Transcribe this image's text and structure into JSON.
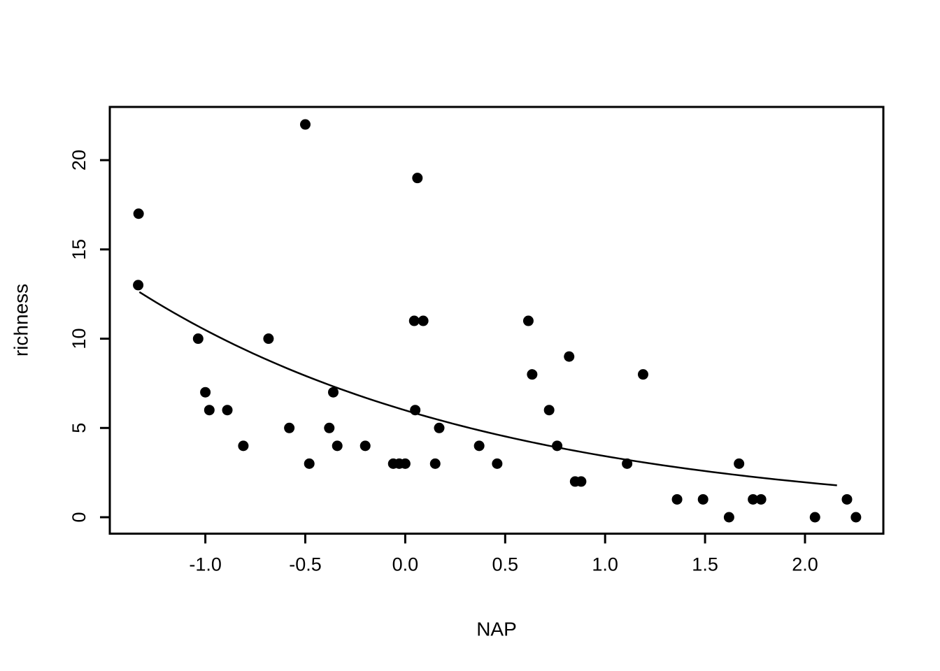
{
  "chart_data": {
    "type": "scatter",
    "title": "",
    "xlabel": "NAP",
    "ylabel": "richness",
    "xlim": [
      -1.478,
      2.392
    ],
    "ylim": [
      -0.92,
      22.98
    ],
    "x_ticks": [
      -1.0,
      -0.5,
      0.0,
      0.5,
      1.0,
      1.5,
      2.0
    ],
    "x_tick_labels": [
      "-1.0",
      "-0.5",
      "0.0",
      "0.5",
      "1.0",
      "1.5",
      "2.0"
    ],
    "y_ticks": [
      0,
      5,
      10,
      15,
      20
    ],
    "y_tick_labels": [
      "0",
      "5",
      "10",
      "15",
      "20"
    ],
    "grid": false,
    "legend": "none",
    "point_color": "#000000",
    "line_color": "#000000",
    "background_color": "#ffffff",
    "points": [
      [
        -1.334,
        17
      ],
      [
        -1.336,
        13
      ],
      [
        -1.036,
        10
      ],
      [
        -1.0,
        7
      ],
      [
        -0.98,
        6
      ],
      [
        -0.89,
        6
      ],
      [
        -0.81,
        4
      ],
      [
        -0.684,
        10
      ],
      [
        -0.58,
        5
      ],
      [
        -0.5,
        22
      ],
      [
        -0.48,
        3
      ],
      [
        -0.38,
        5
      ],
      [
        -0.36,
        7
      ],
      [
        -0.34,
        4
      ],
      [
        -0.2,
        4
      ],
      [
        -0.06,
        3
      ],
      [
        -0.03,
        3
      ],
      [
        0.0,
        3
      ],
      [
        0.045,
        11
      ],
      [
        0.05,
        6
      ],
      [
        0.061,
        19
      ],
      [
        0.09,
        11
      ],
      [
        0.15,
        3
      ],
      [
        0.17,
        5
      ],
      [
        0.37,
        4
      ],
      [
        0.46,
        3
      ],
      [
        0.616,
        11
      ],
      [
        0.635,
        8
      ],
      [
        0.72,
        6
      ],
      [
        0.76,
        4
      ],
      [
        0.82,
        9
      ],
      [
        0.85,
        2
      ],
      [
        0.88,
        2
      ],
      [
        1.11,
        3
      ],
      [
        1.19,
        8
      ],
      [
        1.36,
        1
      ],
      [
        1.49,
        1
      ],
      [
        1.62,
        0
      ],
      [
        1.67,
        3
      ],
      [
        1.74,
        1
      ],
      [
        1.78,
        1
      ],
      [
        2.05,
        0
      ],
      [
        2.21,
        1
      ],
      [
        2.255,
        0
      ]
    ],
    "fit_curve": {
      "type": "exponential",
      "formula": "richness = exp(1.79 - 0.56 * NAP)",
      "intercept": 1.79,
      "slope": -0.56,
      "x_range": [
        -1.33,
        2.16
      ]
    }
  }
}
